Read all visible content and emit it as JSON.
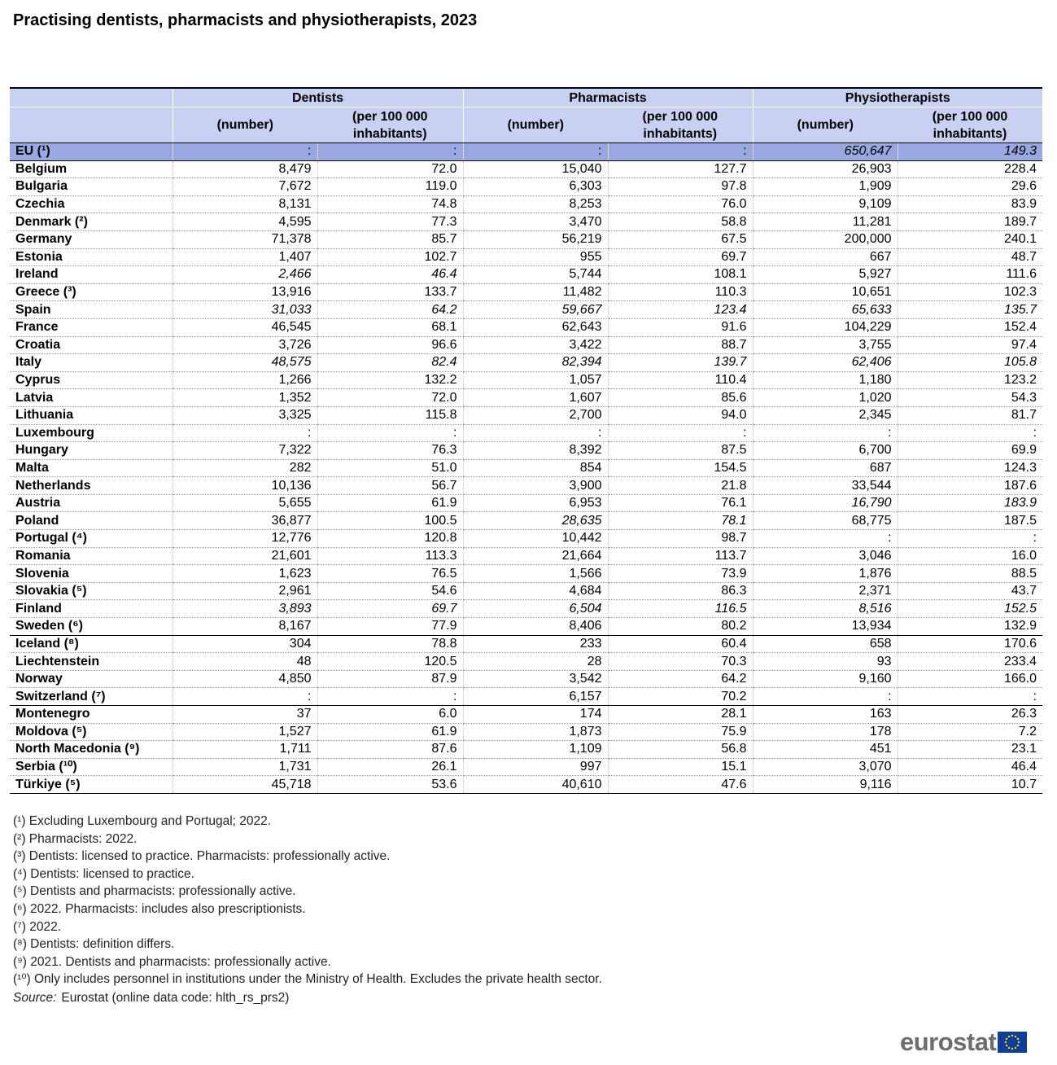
{
  "header": {
    "title": "Practising dentists, pharmacists and physiotherapists, 2023"
  },
  "table": {
    "groups": [
      "Dentists",
      "Pharmacists",
      "Physiotherapists"
    ],
    "subheaders": [
      "(number)",
      "(per 100 000 inhabitants)"
    ],
    "eu_row": {
      "label": "EU (¹)",
      "cells": [
        ":",
        ":",
        ":",
        ":",
        "650,647",
        "149.3"
      ],
      "italic": [
        4,
        5
      ]
    },
    "row_groups": [
      [
        {
          "label": "Belgium",
          "cells": [
            "8,479",
            "72.0",
            "15,040",
            "127.7",
            "26,903",
            "228.4"
          ]
        },
        {
          "label": "Bulgaria",
          "cells": [
            "7,672",
            "119.0",
            "6,303",
            "97.8",
            "1,909",
            "29.6"
          ]
        },
        {
          "label": "Czechia",
          "cells": [
            "8,131",
            "74.8",
            "8,253",
            "76.0",
            "9,109",
            "83.9"
          ]
        },
        {
          "label": "Denmark (²)",
          "cells": [
            "4,595",
            "77.3",
            "3,470",
            "58.8",
            "11,281",
            "189.7"
          ]
        },
        {
          "label": "Germany",
          "cells": [
            "71,378",
            "85.7",
            "56,219",
            "67.5",
            "200,000",
            "240.1"
          ]
        },
        {
          "label": "Estonia",
          "cells": [
            "1,407",
            "102.7",
            "955",
            "69.7",
            "667",
            "48.7"
          ]
        },
        {
          "label": "Ireland",
          "cells": [
            "2,466",
            "46.4",
            "5,744",
            "108.1",
            "5,927",
            "111.6"
          ],
          "italic": [
            0,
            1
          ]
        },
        {
          "label": "Greece (³)",
          "cells": [
            "13,916",
            "133.7",
            "11,482",
            "110.3",
            "10,651",
            "102.3"
          ]
        },
        {
          "label": "Spain",
          "cells": [
            "31,033",
            "64.2",
            "59,667",
            "123.4",
            "65,633",
            "135.7"
          ],
          "italic": [
            0,
            1,
            2,
            3,
            4,
            5
          ]
        },
        {
          "label": "France",
          "cells": [
            "46,545",
            "68.1",
            "62,643",
            "91.6",
            "104,229",
            "152.4"
          ]
        },
        {
          "label": "Croatia",
          "cells": [
            "3,726",
            "96.6",
            "3,422",
            "88.7",
            "3,755",
            "97.4"
          ]
        },
        {
          "label": "Italy",
          "cells": [
            "48,575",
            "82.4",
            "82,394",
            "139.7",
            "62,406",
            "105.8"
          ],
          "italic": [
            0,
            1,
            2,
            3,
            4,
            5
          ]
        },
        {
          "label": "Cyprus",
          "cells": [
            "1,266",
            "132.2",
            "1,057",
            "110.4",
            "1,180",
            "123.2"
          ]
        },
        {
          "label": "Latvia",
          "cells": [
            "1,352",
            "72.0",
            "1,607",
            "85.6",
            "1,020",
            "54.3"
          ]
        },
        {
          "label": "Lithuania",
          "cells": [
            "3,325",
            "115.8",
            "2,700",
            "94.0",
            "2,345",
            "81.7"
          ]
        },
        {
          "label": "Luxembourg",
          "cells": [
            ":",
            ":",
            ":",
            ":",
            ":",
            ":"
          ]
        },
        {
          "label": "Hungary",
          "cells": [
            "7,322",
            "76.3",
            "8,392",
            "87.5",
            "6,700",
            "69.9"
          ]
        },
        {
          "label": "Malta",
          "cells": [
            "282",
            "51.0",
            "854",
            "154.5",
            "687",
            "124.3"
          ]
        },
        {
          "label": "Netherlands",
          "cells": [
            "10,136",
            "56.7",
            "3,900",
            "21.8",
            "33,544",
            "187.6"
          ]
        },
        {
          "label": "Austria",
          "cells": [
            "5,655",
            "61.9",
            "6,953",
            "76.1",
            "16,790",
            "183.9"
          ],
          "italic": [
            4,
            5
          ]
        },
        {
          "label": "Poland",
          "cells": [
            "36,877",
            "100.5",
            "28,635",
            "78.1",
            "68,775",
            "187.5"
          ],
          "italic": [
            2,
            3
          ]
        },
        {
          "label": "Portugal (⁴)",
          "cells": [
            "12,776",
            "120.8",
            "10,442",
            "98.7",
            ":",
            ":"
          ]
        },
        {
          "label": "Romania",
          "cells": [
            "21,601",
            "113.3",
            "21,664",
            "113.7",
            "3,046",
            "16.0"
          ]
        },
        {
          "label": "Slovenia",
          "cells": [
            "1,623",
            "76.5",
            "1,566",
            "73.9",
            "1,876",
            "88.5"
          ]
        },
        {
          "label": "Slovakia (⁵)",
          "cells": [
            "2,961",
            "54.6",
            "4,684",
            "86.3",
            "2,371",
            "43.7"
          ]
        },
        {
          "label": "Finland",
          "cells": [
            "3,893",
            "69.7",
            "6,504",
            "116.5",
            "8,516",
            "152.5"
          ],
          "italic": [
            0,
            1,
            2,
            3,
            4,
            5
          ]
        },
        {
          "label": "Sweden (⁶)",
          "cells": [
            "8,167",
            "77.9",
            "8,406",
            "80.2",
            "13,934",
            "132.9"
          ]
        }
      ],
      [
        {
          "label": "Iceland (⁸)",
          "cells": [
            "304",
            "78.8",
            "233",
            "60.4",
            "658",
            "170.6"
          ]
        },
        {
          "label": "Liechtenstein",
          "cells": [
            "48",
            "120.5",
            "28",
            "70.3",
            "93",
            "233.4"
          ]
        },
        {
          "label": "Norway",
          "cells": [
            "4,850",
            "87.9",
            "3,542",
            "64.2",
            "9,160",
            "166.0"
          ]
        },
        {
          "label": "Switzerland (⁷)",
          "cells": [
            ":",
            ":",
            "6,157",
            "70.2",
            ":",
            ":"
          ]
        }
      ],
      [
        {
          "label": "Montenegro",
          "cells": [
            "37",
            "6.0",
            "174",
            "28.1",
            "163",
            "26.3"
          ]
        },
        {
          "label": "Moldova (⁵)",
          "cells": [
            "1,527",
            "61.9",
            "1,873",
            "75.9",
            "178",
            "7.2"
          ]
        },
        {
          "label": "North Macedonia (⁹)",
          "cells": [
            "1,711",
            "87.6",
            "1,109",
            "56.8",
            "451",
            "23.1"
          ]
        },
        {
          "label": "Serbia (¹⁰)",
          "cells": [
            "1,731",
            "26.1",
            "997",
            "15.1",
            "3,070",
            "46.4"
          ]
        },
        {
          "label": "Türkiye (⁵)",
          "cells": [
            "45,718",
            "53.6",
            "40,610",
            "47.6",
            "9,116",
            "10.7"
          ]
        }
      ]
    ]
  },
  "footnotes": [
    "(¹) Excluding Luxembourg and Portugal; 2022.",
    "(²) Pharmacists: 2022.",
    "(³) Dentists: licensed to practice. Pharmacists: professionally active.",
    "(⁴) Dentists: licensed to practice.",
    "(⁵) Dentists and pharmacists: professionally active.",
    "(⁶) 2022. Pharmacists: includes also prescriptionists.",
    "(⁷) 2022.",
    "(⁸) Dentists: definition differs.",
    "(⁹) 2021. Dentists and pharmacists: professionally active.",
    "(¹⁰) Only includes personnel in institutions under the Ministry of Health. Excludes the private health sector."
  ],
  "source": {
    "label": "Source:",
    "text": "Eurostat (online data code: hlth_rs_prs2)"
  },
  "logo": "eurostat"
}
